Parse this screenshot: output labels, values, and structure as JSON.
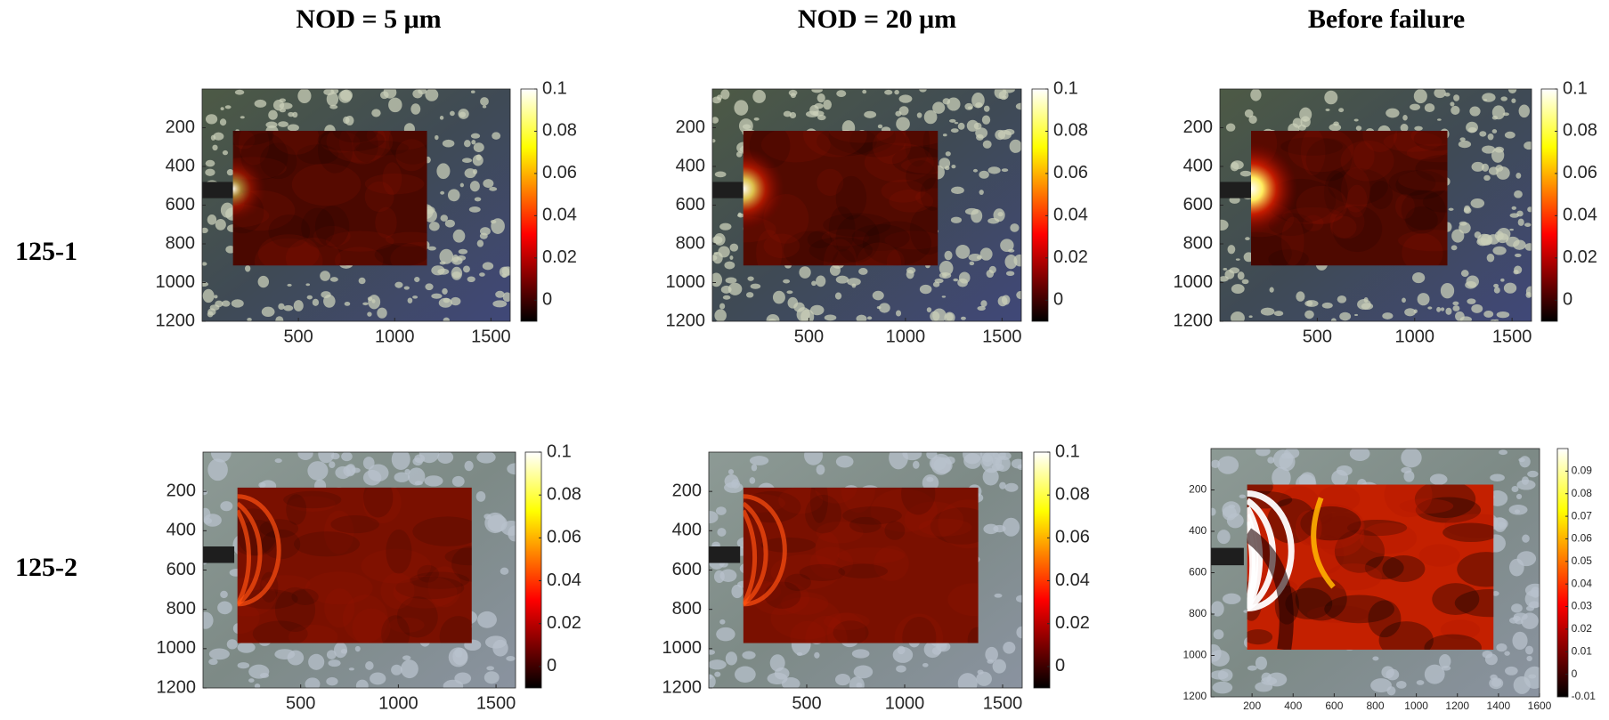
{
  "figure": {
    "column_titles": [
      "NOD = 5 μm",
      "NOD = 20 μm",
      "Before failure"
    ],
    "row_labels": [
      "125-1",
      "125-2"
    ]
  },
  "chart_data": [
    {
      "type": "heatmap",
      "xlim": [
        0,
        1600
      ],
      "ylim": [
        0,
        1200
      ],
      "y_reversed": true,
      "xticks": [
        500,
        1000,
        1500
      ],
      "yticks": [
        200,
        400,
        600,
        800,
        1000,
        1200
      ],
      "colormap": "hot",
      "clim": [
        -0.01,
        0.1
      ],
      "cticks": [
        0,
        0.02,
        0.04,
        0.06,
        0.08,
        0.1
      ]
    },
    {
      "type": "heatmap",
      "xlim": [
        0,
        1600
      ],
      "ylim": [
        0,
        1200
      ],
      "y_reversed": true,
      "xticks": [
        500,
        1000,
        1500
      ],
      "yticks": [
        200,
        400,
        600,
        800,
        1000,
        1200
      ],
      "colormap": "hot",
      "clim": [
        -0.01,
        0.1
      ],
      "cticks": [
        0,
        0.02,
        0.04,
        0.06,
        0.08,
        0.1
      ]
    },
    {
      "type": "heatmap",
      "xlim": [
        0,
        1600
      ],
      "ylim": [
        0,
        1200
      ],
      "y_reversed": true,
      "xticks": [
        500,
        1000,
        1500
      ],
      "yticks": [
        200,
        400,
        600,
        800,
        1000,
        1200
      ],
      "colormap": "hot",
      "clim": [
        -0.01,
        0.1
      ],
      "cticks": [
        0,
        0.02,
        0.04,
        0.06,
        0.08,
        0.1
      ]
    },
    {
      "type": "heatmap",
      "xlim": [
        0,
        1600
      ],
      "ylim": [
        0,
        1200
      ],
      "y_reversed": true,
      "xticks": [
        500,
        1000,
        1500
      ],
      "yticks": [
        200,
        400,
        600,
        800,
        1000,
        1200
      ],
      "colormap": "hot",
      "clim": [
        -0.01,
        0.1
      ],
      "cticks": [
        0,
        0.02,
        0.04,
        0.06,
        0.08,
        0.1
      ]
    },
    {
      "type": "heatmap",
      "xlim": [
        0,
        1600
      ],
      "ylim": [
        0,
        1200
      ],
      "y_reversed": true,
      "xticks": [
        500,
        1000,
        1500
      ],
      "yticks": [
        200,
        400,
        600,
        800,
        1000,
        1200
      ],
      "colormap": "hot",
      "clim": [
        -0.01,
        0.1
      ],
      "cticks": [
        0,
        0.02,
        0.04,
        0.06,
        0.08,
        0.1
      ]
    },
    {
      "type": "heatmap",
      "xlim": [
        0,
        1600
      ],
      "ylim": [
        0,
        1200
      ],
      "y_reversed": true,
      "xticks": [
        200,
        400,
        600,
        800,
        1000,
        1200,
        1400,
        1600
      ],
      "yticks": [
        200,
        400,
        600,
        800,
        1000,
        1200
      ],
      "colormap": "hot",
      "clim": [
        -0.01,
        0.1
      ],
      "cticks": [
        -0.01,
        0,
        0.01,
        0.02,
        0.03,
        0.04,
        0.05,
        0.06,
        0.07,
        0.08,
        0.09
      ]
    }
  ]
}
